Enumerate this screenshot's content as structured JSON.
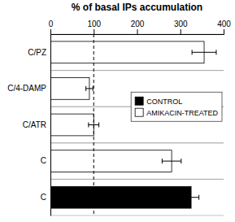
{
  "chart_data": {
    "type": "bar",
    "orientation": "horizontal",
    "title": "% of basal IPs accumulation",
    "categories": [
      "C",
      "C",
      "C/ATR",
      "C/4-DAMP",
      "C/PZ"
    ],
    "values": [
      325,
      280,
      100,
      90,
      355
    ],
    "errors": [
      18,
      22,
      12,
      8,
      28
    ],
    "colors": [
      "black",
      "white",
      "white",
      "white",
      "white"
    ],
    "xlim": [
      0,
      400
    ],
    "xticks": [
      0,
      100,
      200,
      300,
      400
    ],
    "reference_x": 100,
    "legend": "right",
    "legend_labels": [
      "CONTROL",
      "AMIKACIN-TREATED"
    ],
    "legend_colors": [
      "black",
      "white"
    ],
    "grid": false
  }
}
